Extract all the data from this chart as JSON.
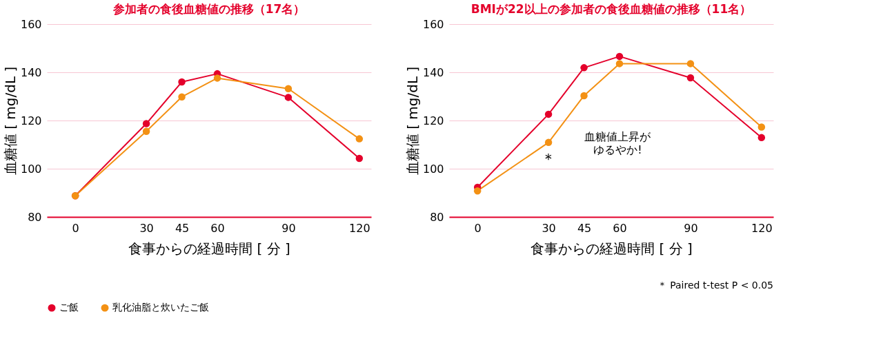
{
  "chart_data": [
    {
      "type": "line",
      "title": "参加者の食後血糖値の推移（17名）",
      "xlabel": "食事からの経過時間 [ 分 ]",
      "ylabel": "血糖値 [ mg/dL ]",
      "x": [
        0,
        30,
        45,
        60,
        90,
        120
      ],
      "xlim": [
        -12,
        125
      ],
      "xticks": [
        0,
        30,
        45,
        60,
        90,
        120
      ],
      "ylim": [
        80,
        160
      ],
      "yticks": [
        80,
        100,
        120,
        140,
        160
      ],
      "grid": "y",
      "legend": "bottom",
      "marker": "circle",
      "line_style": "solid",
      "series": [
        {
          "name": "ご飯",
          "color": "#e4002b",
          "values": [
            88.8,
            118.7,
            136.0,
            139.4,
            129.6,
            104.3
          ]
        },
        {
          "name": "乳化油脂と炊いたご飯",
          "color": "#f39114",
          "values": [
            88.8,
            115.5,
            129.8,
            137.6,
            133.2,
            112.4
          ]
        }
      ]
    },
    {
      "type": "line",
      "title": "BMIが22以上の参加者の食後血糖値の推移（11名）",
      "xlabel": "食事からの経過時間 [ 分 ]",
      "ylabel": "血糖値 [ mg/dL ]",
      "x": [
        0,
        30,
        45,
        60,
        90,
        120
      ],
      "xlim": [
        -12,
        125
      ],
      "xticks": [
        0,
        30,
        45,
        60,
        90,
        120
      ],
      "ylim": [
        80,
        160
      ],
      "yticks": [
        80,
        100,
        120,
        140,
        160
      ],
      "grid": "y",
      "legend": "bottom",
      "marker": "circle",
      "line_style": "solid",
      "series": [
        {
          "name": "ご飯",
          "color": "#e4002b",
          "values": [
            92.3,
            122.6,
            141.9,
            146.6,
            137.7,
            112.9
          ]
        },
        {
          "name": "乳化油脂と炊いたご飯",
          "color": "#f39114",
          "values": [
            90.8,
            110.9,
            130.3,
            143.6,
            143.6,
            117.3
          ]
        }
      ],
      "annotations": [
        "＊",
        "血糖値上昇が",
        "ゆるやか!",
        "＊ Paired t-test P < 0.05"
      ]
    }
  ]
}
